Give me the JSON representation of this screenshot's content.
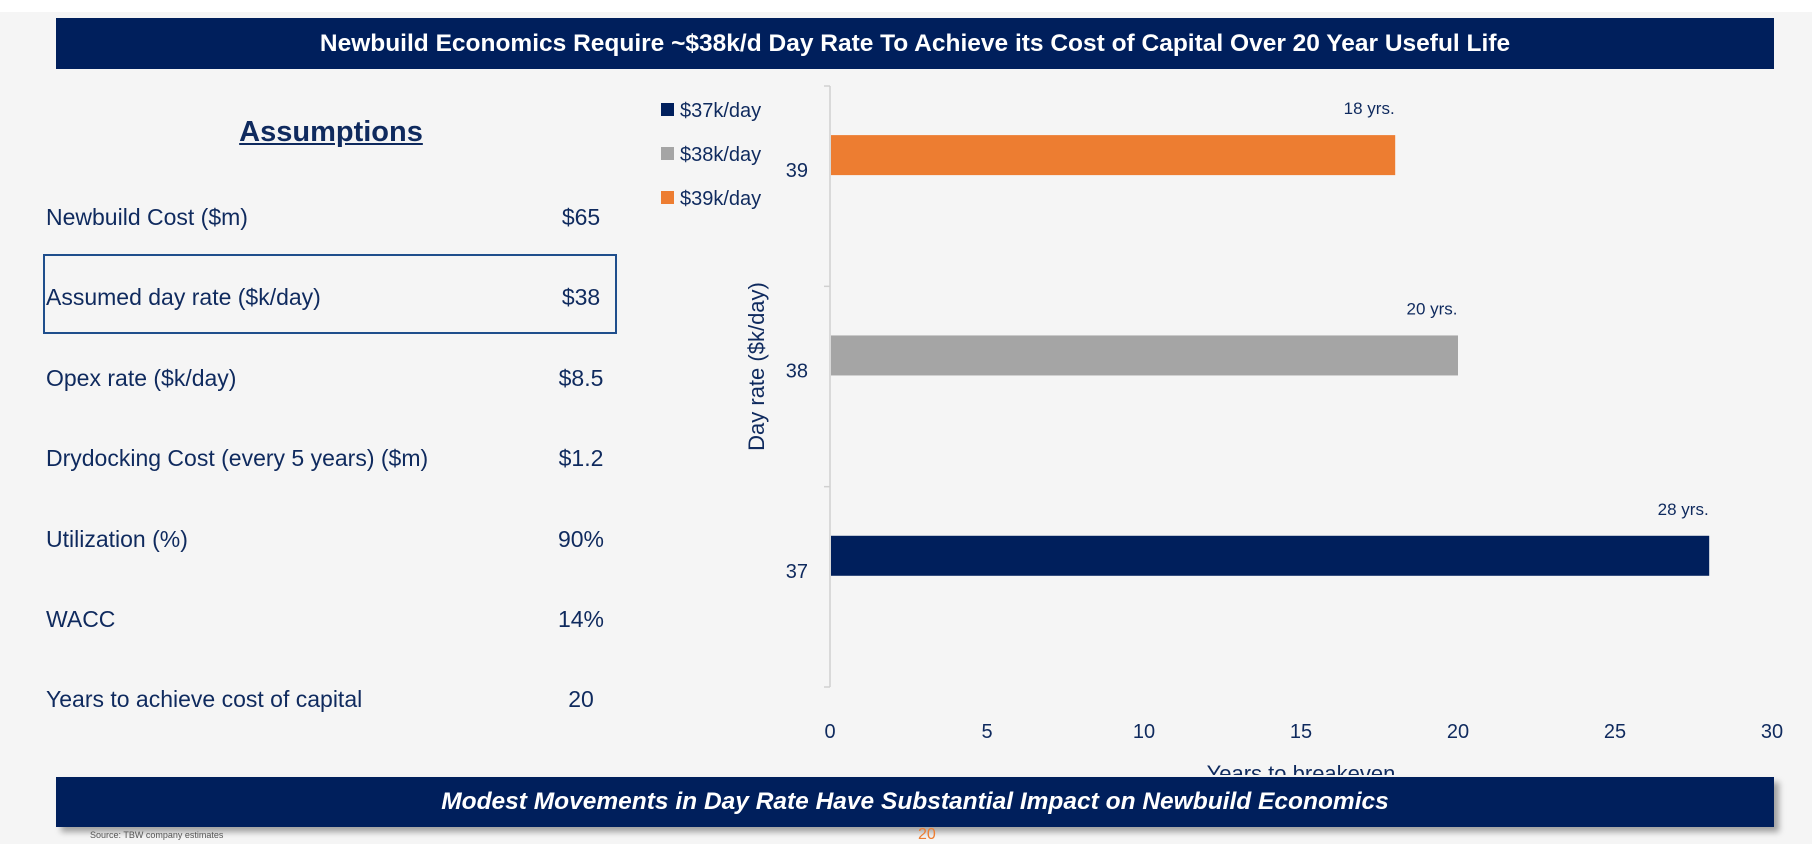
{
  "header": {
    "title": "Newbuild Economics Require ~$38k/d Day Rate To Achieve its Cost of Capital Over 20 Year Useful Life"
  },
  "assumptions": {
    "title": "Assumptions",
    "rows": [
      {
        "label": "Newbuild Cost ($m)",
        "value": "$65"
      },
      {
        "label": "Assumed day rate ($k/day)",
        "value": "$38"
      },
      {
        "label": "Opex rate ($k/day)",
        "value": "$8.5"
      },
      {
        "label": "Drydocking Cost (every 5 years) ($m)",
        "value": "$1.2"
      },
      {
        "label": "Utilization (%)",
        "value": "90%"
      },
      {
        "label": "WACC",
        "value": "14%"
      },
      {
        "label": "Years to achieve cost of capital",
        "value": "20"
      }
    ]
  },
  "chart_data": {
    "type": "bar",
    "orientation": "horizontal",
    "categories": [
      "37",
      "38",
      "39"
    ],
    "series": [
      {
        "name": "$37k/day",
        "category": "37",
        "value": 28,
        "label": "28 yrs.",
        "color": "#001f5c"
      },
      {
        "name": "$38k/day",
        "category": "38",
        "value": 20,
        "label": "20 yrs.",
        "color": "#a5a5a5"
      },
      {
        "name": "$39k/day",
        "category": "39",
        "value": 18,
        "label": "18 yrs.",
        "color": "#ed7d31"
      }
    ],
    "xlabel": "Years to breakeven",
    "ylabel": "Day rate ($k/day)",
    "xlim": [
      0,
      30
    ],
    "xticks": [
      0,
      5,
      10,
      15,
      20,
      25,
      30
    ],
    "grid": false,
    "legend_position": "top-left"
  },
  "footer": {
    "banner": "Modest Movements in Day Rate Have Substantial Impact on Newbuild Economics",
    "note": "Source: TBW company estimates",
    "page_number": "20"
  }
}
